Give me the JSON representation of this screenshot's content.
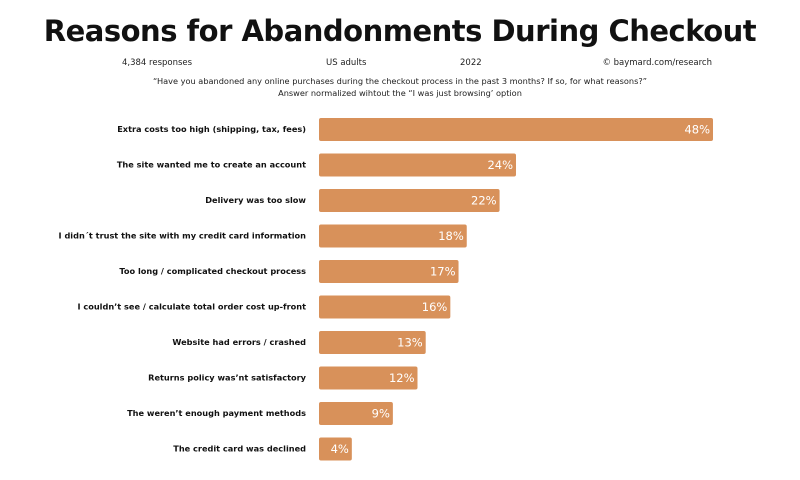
{
  "header": {
    "title": "Reasons for Abandonments During Checkout",
    "responses": "4,384 responses",
    "audience": "US adults",
    "year": "2022",
    "source": "© baymard.com/research",
    "question": "“Have you abandoned any online purchases during the checkout process in the past 3 months? If so, for what reasons?”",
    "note": "Answer normalized wihtout the “I was just browsing’ option"
  },
  "colors": {
    "bar": "#D8915A",
    "text": "#111111",
    "bar_label": "#FFFFFF"
  },
  "chart_data": {
    "type": "bar",
    "orientation": "horizontal",
    "title": "Reasons for Abandonments During Checkout",
    "xlabel": "",
    "ylabel": "",
    "xlim": [
      0,
      48
    ],
    "grid": false,
    "categories": [
      "Extra costs too high (shipping, tax, fees)",
      "The site wanted me to create an account",
      "Delivery was too slow",
      "I didn´t trust the site with my credit card information",
      "Too long / complicated checkout process",
      "I couldn’t see / calculate total order cost up-front",
      "Website had errors / crashed",
      "Returns policy was’nt satisfactory",
      "The weren’t enough payment methods",
      "The credit card was declined"
    ],
    "values": [
      48,
      24,
      22,
      18,
      17,
      16,
      13,
      12,
      9,
      4
    ],
    "value_labels": [
      "48%",
      "24%",
      "22%",
      "18%",
      "17%",
      "16%",
      "13%",
      "12%",
      "9%",
      "4%"
    ]
  }
}
